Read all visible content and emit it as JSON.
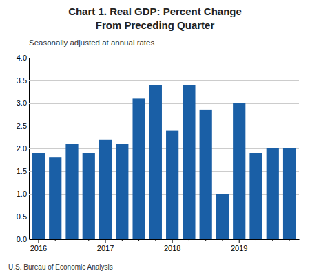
{
  "chart_data": {
    "type": "bar",
    "title": [
      "Chart 1. Real GDP: Percent Change",
      "From Preceding Quarter"
    ],
    "subtitle": "Seasonally adjusted at annual rates",
    "annotations": [
      "U.S. Bureau of Economic Analysis"
    ],
    "categories": [
      "2016",
      null,
      null,
      null,
      "2017",
      null,
      null,
      null,
      "2018",
      null,
      null,
      null,
      "2019",
      null,
      null,
      null
    ],
    "values": [
      1.9,
      1.8,
      2.1,
      1.9,
      2.2,
      2.1,
      3.1,
      3.4,
      2.4,
      3.4,
      2.85,
      1.0,
      3.0,
      1.9,
      2.0,
      2.0
    ],
    "color": "#1a5fa6",
    "ylim": [
      0,
      4.0
    ],
    "yticks": [
      {
        "value": 0,
        "label": "0.0"
      },
      0.5,
      {
        "value": 1.0,
        "label": "1.0"
      },
      1.5,
      {
        "value": 2.0,
        "label": "2.0"
      },
      2.5,
      {
        "value": 3.0,
        "label": "3.0"
      },
      3.5,
      {
        "value": 4.0,
        "label": "4.0"
      }
    ],
    "grid": true
  }
}
